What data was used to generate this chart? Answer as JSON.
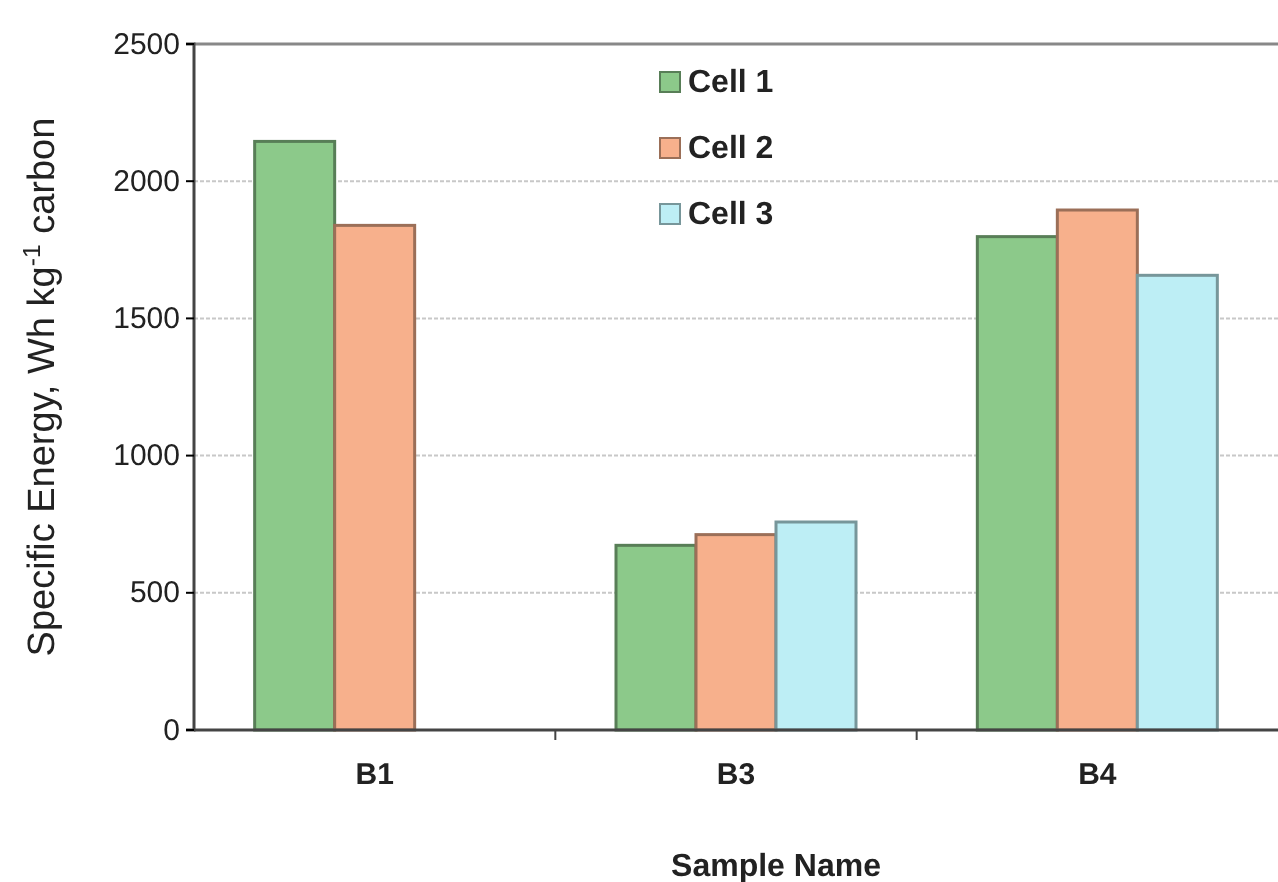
{
  "chart_data": {
    "type": "bar",
    "xlabel": "Sample Name",
    "ylabel": "Specific Energy, Wh kg$^{-1}$ carbon",
    "categories": [
      "B1",
      "B3",
      "B4"
    ],
    "series": [
      {
        "name": "Cell 1",
        "color": "#8cc98a",
        "values": [
          2145,
          673,
          1798
        ]
      },
      {
        "name": "Cell 2",
        "color": "#f7b08c",
        "values": [
          1839,
          712,
          1895
        ]
      },
      {
        "name": "Cell 3",
        "color": "#bdeef5",
        "values": [
          null,
          758,
          1657
        ]
      }
    ],
    "ylim": [
      0,
      2500
    ],
    "yticks": [
      0,
      500,
      1000,
      1500,
      2000,
      2500
    ],
    "grid": "y",
    "legend": "top"
  }
}
